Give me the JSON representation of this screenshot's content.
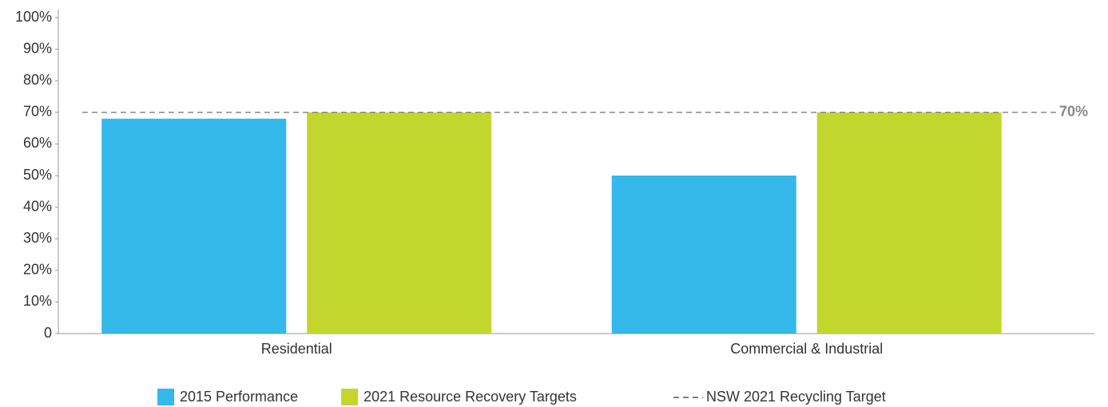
{
  "chart_data": {
    "type": "bar",
    "categories": [
      "Residential",
      "Commercial & Industrial"
    ],
    "series": [
      {
        "name": "2015 Performance",
        "color": "#35b8ea",
        "values": [
          68,
          50
        ]
      },
      {
        "name": "2021 Resource Recovery Targets",
        "color": "#c3d62e",
        "values": [
          70,
          70
        ]
      }
    ],
    "reference_line": {
      "name": "NSW 2021 Recycling Target",
      "value": 70,
      "label": "70%",
      "color": "#888888"
    },
    "ylim": [
      0,
      100
    ],
    "yticks": [
      0,
      {
        "value": 10,
        "label": "10%"
      },
      {
        "value": 20,
        "label": "20%"
      },
      {
        "value": 30,
        "label": "30%"
      },
      {
        "value": 40,
        "label": "40%"
      },
      {
        "value": 50,
        "label": "50%"
      },
      {
        "value": 60,
        "label": "60%"
      },
      {
        "value": 70,
        "label": "70%"
      },
      {
        "value": 80,
        "label": "80%"
      },
      {
        "value": 90,
        "label": "90%"
      },
      {
        "value": 100,
        "label": "100%"
      }
    ],
    "grid": false,
    "legend": "bottom"
  }
}
